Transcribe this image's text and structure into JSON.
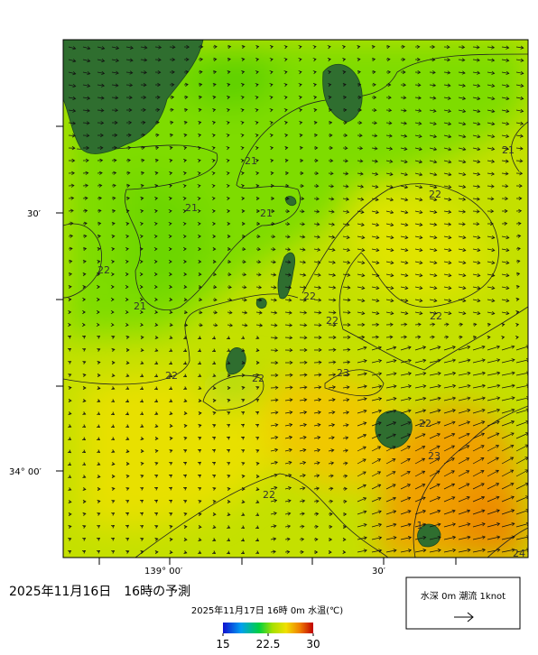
{
  "map": {
    "lat_labels": [
      "30′",
      "34° 00′"
    ],
    "lon_labels": [
      "139° 00′",
      "30′"
    ],
    "contour_labels": [
      "21",
      "21",
      "21",
      "21",
      "21",
      "22",
      "22",
      "22",
      "22",
      "22",
      "22",
      "22",
      "22",
      "22",
      "23",
      "23",
      "24",
      "1"
    ]
  },
  "title": "2025年11月16日　16時の予測",
  "colorbar": {
    "label": "2025年11月17日 16時 0m 水温(℃)",
    "range": [
      15,
      30
    ],
    "ticks": [
      15,
      22.5,
      30
    ]
  },
  "legend": {
    "text": "水深 0m 潮流 1knot"
  }
}
